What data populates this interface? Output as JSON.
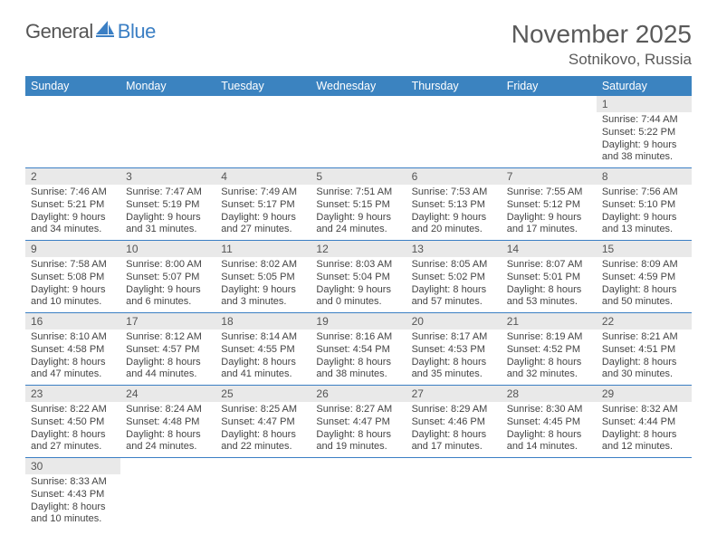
{
  "logo": {
    "word1": "General",
    "word2": "Blue"
  },
  "title": "November 2025",
  "location": "Sotnikovo, Russia",
  "colors": {
    "header_bg": "#3b83c0",
    "header_text": "#ffffff",
    "daynum_bg": "#e9e9e9",
    "row_border": "#3b7fc4",
    "logo_accent": "#3b7fc4"
  },
  "weekdays": [
    "Sunday",
    "Monday",
    "Tuesday",
    "Wednesday",
    "Thursday",
    "Friday",
    "Saturday"
  ],
  "weeks": [
    [
      {
        "blank": true
      },
      {
        "blank": true
      },
      {
        "blank": true
      },
      {
        "blank": true
      },
      {
        "blank": true
      },
      {
        "blank": true
      },
      {
        "n": "1",
        "sr": "Sunrise: 7:44 AM",
        "ss": "Sunset: 5:22 PM",
        "d1": "Daylight: 9 hours",
        "d2": "and 38 minutes."
      }
    ],
    [
      {
        "n": "2",
        "sr": "Sunrise: 7:46 AM",
        "ss": "Sunset: 5:21 PM",
        "d1": "Daylight: 9 hours",
        "d2": "and 34 minutes."
      },
      {
        "n": "3",
        "sr": "Sunrise: 7:47 AM",
        "ss": "Sunset: 5:19 PM",
        "d1": "Daylight: 9 hours",
        "d2": "and 31 minutes."
      },
      {
        "n": "4",
        "sr": "Sunrise: 7:49 AM",
        "ss": "Sunset: 5:17 PM",
        "d1": "Daylight: 9 hours",
        "d2": "and 27 minutes."
      },
      {
        "n": "5",
        "sr": "Sunrise: 7:51 AM",
        "ss": "Sunset: 5:15 PM",
        "d1": "Daylight: 9 hours",
        "d2": "and 24 minutes."
      },
      {
        "n": "6",
        "sr": "Sunrise: 7:53 AM",
        "ss": "Sunset: 5:13 PM",
        "d1": "Daylight: 9 hours",
        "d2": "and 20 minutes."
      },
      {
        "n": "7",
        "sr": "Sunrise: 7:55 AM",
        "ss": "Sunset: 5:12 PM",
        "d1": "Daylight: 9 hours",
        "d2": "and 17 minutes."
      },
      {
        "n": "8",
        "sr": "Sunrise: 7:56 AM",
        "ss": "Sunset: 5:10 PM",
        "d1": "Daylight: 9 hours",
        "d2": "and 13 minutes."
      }
    ],
    [
      {
        "n": "9",
        "sr": "Sunrise: 7:58 AM",
        "ss": "Sunset: 5:08 PM",
        "d1": "Daylight: 9 hours",
        "d2": "and 10 minutes."
      },
      {
        "n": "10",
        "sr": "Sunrise: 8:00 AM",
        "ss": "Sunset: 5:07 PM",
        "d1": "Daylight: 9 hours",
        "d2": "and 6 minutes."
      },
      {
        "n": "11",
        "sr": "Sunrise: 8:02 AM",
        "ss": "Sunset: 5:05 PM",
        "d1": "Daylight: 9 hours",
        "d2": "and 3 minutes."
      },
      {
        "n": "12",
        "sr": "Sunrise: 8:03 AM",
        "ss": "Sunset: 5:04 PM",
        "d1": "Daylight: 9 hours",
        "d2": "and 0 minutes."
      },
      {
        "n": "13",
        "sr": "Sunrise: 8:05 AM",
        "ss": "Sunset: 5:02 PM",
        "d1": "Daylight: 8 hours",
        "d2": "and 57 minutes."
      },
      {
        "n": "14",
        "sr": "Sunrise: 8:07 AM",
        "ss": "Sunset: 5:01 PM",
        "d1": "Daylight: 8 hours",
        "d2": "and 53 minutes."
      },
      {
        "n": "15",
        "sr": "Sunrise: 8:09 AM",
        "ss": "Sunset: 4:59 PM",
        "d1": "Daylight: 8 hours",
        "d2": "and 50 minutes."
      }
    ],
    [
      {
        "n": "16",
        "sr": "Sunrise: 8:10 AM",
        "ss": "Sunset: 4:58 PM",
        "d1": "Daylight: 8 hours",
        "d2": "and 47 minutes."
      },
      {
        "n": "17",
        "sr": "Sunrise: 8:12 AM",
        "ss": "Sunset: 4:57 PM",
        "d1": "Daylight: 8 hours",
        "d2": "and 44 minutes."
      },
      {
        "n": "18",
        "sr": "Sunrise: 8:14 AM",
        "ss": "Sunset: 4:55 PM",
        "d1": "Daylight: 8 hours",
        "d2": "and 41 minutes."
      },
      {
        "n": "19",
        "sr": "Sunrise: 8:16 AM",
        "ss": "Sunset: 4:54 PM",
        "d1": "Daylight: 8 hours",
        "d2": "and 38 minutes."
      },
      {
        "n": "20",
        "sr": "Sunrise: 8:17 AM",
        "ss": "Sunset: 4:53 PM",
        "d1": "Daylight: 8 hours",
        "d2": "and 35 minutes."
      },
      {
        "n": "21",
        "sr": "Sunrise: 8:19 AM",
        "ss": "Sunset: 4:52 PM",
        "d1": "Daylight: 8 hours",
        "d2": "and 32 minutes."
      },
      {
        "n": "22",
        "sr": "Sunrise: 8:21 AM",
        "ss": "Sunset: 4:51 PM",
        "d1": "Daylight: 8 hours",
        "d2": "and 30 minutes."
      }
    ],
    [
      {
        "n": "23",
        "sr": "Sunrise: 8:22 AM",
        "ss": "Sunset: 4:50 PM",
        "d1": "Daylight: 8 hours",
        "d2": "and 27 minutes."
      },
      {
        "n": "24",
        "sr": "Sunrise: 8:24 AM",
        "ss": "Sunset: 4:48 PM",
        "d1": "Daylight: 8 hours",
        "d2": "and 24 minutes."
      },
      {
        "n": "25",
        "sr": "Sunrise: 8:25 AM",
        "ss": "Sunset: 4:47 PM",
        "d1": "Daylight: 8 hours",
        "d2": "and 22 minutes."
      },
      {
        "n": "26",
        "sr": "Sunrise: 8:27 AM",
        "ss": "Sunset: 4:47 PM",
        "d1": "Daylight: 8 hours",
        "d2": "and 19 minutes."
      },
      {
        "n": "27",
        "sr": "Sunrise: 8:29 AM",
        "ss": "Sunset: 4:46 PM",
        "d1": "Daylight: 8 hours",
        "d2": "and 17 minutes."
      },
      {
        "n": "28",
        "sr": "Sunrise: 8:30 AM",
        "ss": "Sunset: 4:45 PM",
        "d1": "Daylight: 8 hours",
        "d2": "and 14 minutes."
      },
      {
        "n": "29",
        "sr": "Sunrise: 8:32 AM",
        "ss": "Sunset: 4:44 PM",
        "d1": "Daylight: 8 hours",
        "d2": "and 12 minutes."
      }
    ],
    [
      {
        "n": "30",
        "sr": "Sunrise: 8:33 AM",
        "ss": "Sunset: 4:43 PM",
        "d1": "Daylight: 8 hours",
        "d2": "and 10 minutes."
      },
      {
        "blank": true
      },
      {
        "blank": true
      },
      {
        "blank": true
      },
      {
        "blank": true
      },
      {
        "blank": true
      },
      {
        "blank": true
      }
    ]
  ]
}
